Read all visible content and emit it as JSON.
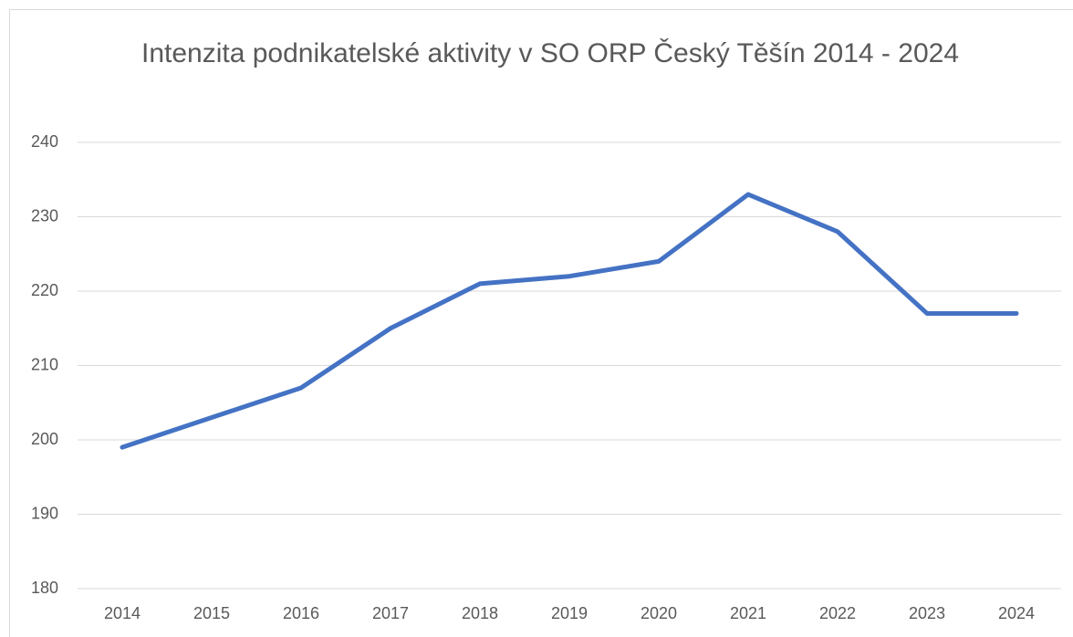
{
  "chart_data": {
    "type": "line",
    "title": "Intenzita podnikatelské aktivity v SO ORP Český Těšín 2014 - 2024",
    "categories": [
      "2014",
      "2015",
      "2016",
      "2017",
      "2018",
      "2019",
      "2020",
      "2021",
      "2022",
      "2023",
      "2024"
    ],
    "series": [
      {
        "color": "#4472c4",
        "values": [
          199,
          203,
          207,
          215,
          221,
          222,
          224,
          233,
          228,
          217,
          217
        ]
      }
    ],
    "ylim": [
      180,
      240
    ],
    "yticks": [
      180,
      190,
      200,
      210,
      220,
      230,
      240
    ],
    "grid": true
  }
}
